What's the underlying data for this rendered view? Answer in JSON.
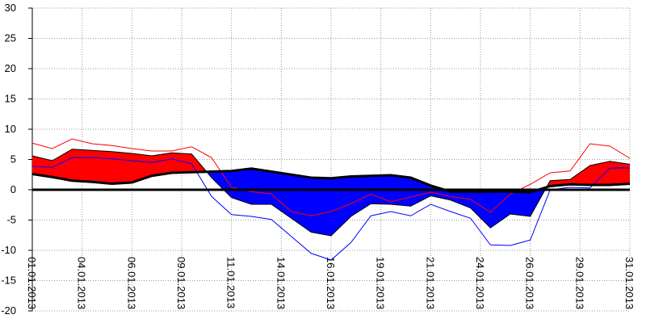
{
  "chart_data": {
    "type": "line",
    "x": [
      0,
      1,
      2,
      3,
      4,
      5,
      6,
      7,
      8,
      9,
      10,
      11,
      12,
      13,
      14,
      15,
      16,
      17,
      18,
      19,
      20,
      21,
      22,
      23,
      24,
      25,
      26,
      27,
      28,
      29,
      30
    ],
    "xlim": [
      0,
      30
    ],
    "xticks": [
      {
        "value": 0,
        "label": "01.01.2013"
      },
      {
        "value": 2.5,
        "label": "04.01.2013"
      },
      {
        "value": 5,
        "label": "06.01.2013"
      },
      {
        "value": 7.5,
        "label": "09.01.2013"
      },
      {
        "value": 10,
        "label": "11.01.2013"
      },
      {
        "value": 12.5,
        "label": "14.01.2013"
      },
      {
        "value": 15,
        "label": "16.01.2013"
      },
      {
        "value": 17.5,
        "label": "19.01.2013"
      },
      {
        "value": 20,
        "label": "21.01.2013"
      },
      {
        "value": 22.5,
        "label": "24.01.2013"
      },
      {
        "value": 25,
        "label": "26.01.2013"
      },
      {
        "value": 27.5,
        "label": "29.01.2013"
      },
      {
        "value": 30,
        "label": "31.01.2013"
      }
    ],
    "ylim": [
      -20,
      30
    ],
    "yticks": [
      -20,
      -15,
      -10,
      -5,
      0,
      5,
      10,
      15,
      20,
      25,
      30
    ],
    "grid": true,
    "above_color": "#ff0000",
    "below_color": "#0000ff",
    "mean": {
      "color": "#000000",
      "values": [
        5.6,
        4.8,
        6.7,
        6.5,
        6.3,
        6,
        5.6,
        6.1,
        5.9,
        2,
        -1.3,
        -2.4,
        -2.4,
        -4.7,
        -7,
        -7.6,
        -4.4,
        -2.3,
        -2.4,
        -2.7,
        -1,
        -1.7,
        -3,
        -6.3,
        -4,
        -4.4,
        1.5,
        1.7,
        4,
        4.7,
        4.2
      ]
    },
    "norm": {
      "color": "#000000",
      "values": [
        2.6,
        2.1,
        1.5,
        1.3,
        1,
        1.2,
        2.3,
        2.8,
        2.9,
        3,
        3.1,
        3.5,
        3,
        2.5,
        2,
        1.9,
        2.2,
        2.3,
        2.4,
        2,
        0.7,
        -0.3,
        -0.3,
        -0.3,
        -0.3,
        -0.4,
        0.6,
        0.9,
        0.8,
        0.8,
        1
      ]
    },
    "series": [
      {
        "color": "#ff0000",
        "values": [
          7.7,
          6.8,
          8.4,
          7.6,
          7.3,
          6.8,
          6.4,
          6.4,
          7.1,
          5.3,
          0.4,
          -0.3,
          -0.7,
          -3.6,
          -4.3,
          -3.6,
          -2.3,
          -0.7,
          -2,
          -1.2,
          -0.4,
          -1.1,
          -1.6,
          -3.7,
          -0.7,
          0.9,
          2.8,
          3.1,
          7.6,
          7.2,
          5.2
        ]
      },
      {
        "color": "#0000ff",
        "values": [
          3.9,
          3.7,
          5.3,
          5.3,
          5.1,
          4.8,
          4.5,
          5.1,
          4.3,
          -1.1,
          -4.1,
          -4.4,
          -4.9,
          -7.7,
          -10.5,
          -11.6,
          -8.7,
          -4.3,
          -3.6,
          -4.3,
          -2.4,
          -3.6,
          -4.7,
          -9.1,
          -9.2,
          -8.3,
          0,
          0.4,
          0.3,
          3.6,
          3.6
        ]
      }
    ]
  }
}
